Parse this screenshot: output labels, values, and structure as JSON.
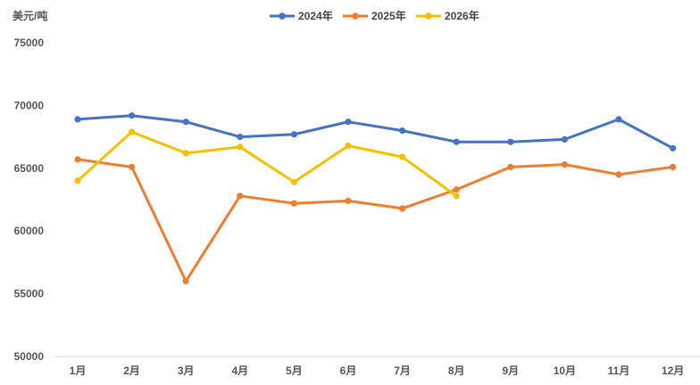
{
  "chart_data": {
    "type": "line",
    "title": "",
    "ylabel": "美元/吨",
    "xlabel": "",
    "categories": [
      "1月",
      "2月",
      "3月",
      "4月",
      "5月",
      "6月",
      "7月",
      "8月",
      "9月",
      "10月",
      "11月",
      "12月"
    ],
    "ylim": [
      50000,
      75000
    ],
    "yticks": [
      50000,
      55000,
      60000,
      65000,
      70000,
      75000
    ],
    "grid": false,
    "legend_position": "top-center",
    "series": [
      {
        "name": "2024年",
        "color": "#4472C4",
        "values": [
          68900,
          69200,
          68700,
          67500,
          67700,
          68700,
          68000,
          67100,
          67100,
          67300,
          68900,
          66600
        ]
      },
      {
        "name": "2025年",
        "color": "#ED7D31",
        "values": [
          65700,
          65100,
          56000,
          62800,
          62200,
          62400,
          61800,
          63300,
          65100,
          65300,
          64500,
          65100
        ]
      },
      {
        "name": "2026年",
        "color": "#F5C000",
        "values": [
          64000,
          67900,
          66200,
          66700,
          63900,
          66800,
          65900,
          62800,
          null,
          null,
          null,
          null
        ]
      }
    ]
  }
}
